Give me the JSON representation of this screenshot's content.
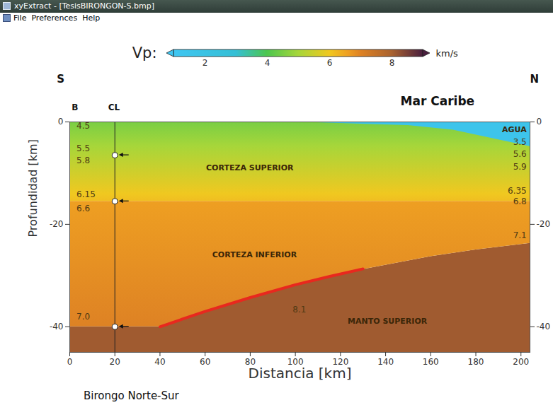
{
  "window": {
    "title": "xyExtract - [TesisBIRONGON-S.bmp]",
    "menu": [
      "File",
      "Preferences",
      "Help"
    ]
  },
  "chart_data": {
    "type": "velocity_section",
    "caption": "Birongo Norte-Sur",
    "x_label": "Distancia [km]",
    "y_label": "Profundidad [km]",
    "xlim": [
      0,
      204
    ],
    "xticks": [
      0,
      20,
      40,
      60,
      80,
      100,
      120,
      140,
      160,
      180,
      200
    ],
    "ylim": [
      -45,
      0
    ],
    "yticks": [
      -40,
      -20,
      0
    ],
    "colorbar": {
      "label": "Vp:",
      "unit": "km/s",
      "range": [
        1,
        9
      ],
      "ticks": [
        2,
        4,
        6,
        8
      ],
      "stops": [
        1,
        3,
        4,
        5,
        6,
        6.6,
        7,
        8,
        9
      ],
      "colors": [
        "#3fc6f2",
        "#35bfd5",
        "#4cc64e",
        "#a6d63a",
        "#f0c820",
        "#ee9f22",
        "#de8224",
        "#a9622f",
        "#4a1f3e"
      ]
    },
    "layers": [
      {
        "vp_top": 8.1,
        "vp_bottom": 8.1,
        "x": [
          0,
          40,
          60,
          80,
          100,
          130,
          160,
          180,
          204
        ],
        "top": [
          -40,
          -40,
          -37.2,
          -34.5,
          -32,
          -28.8,
          -26.3,
          -25,
          -23.7
        ],
        "bottom": [
          -45,
          -45,
          -45,
          -45,
          -45,
          -45,
          -45,
          -45,
          -45
        ]
      },
      {
        "vp_top": 6.6,
        "vp_bottom": 7.0,
        "x": [
          0,
          40,
          60,
          80,
          100,
          130,
          160,
          180,
          204
        ],
        "top": [
          -15.5,
          -15.5,
          -15.5,
          -15.5,
          -15.5,
          -15.5,
          -15.5,
          -15.5,
          -15.5
        ],
        "bottom": [
          -40,
          -40,
          -37.2,
          -34.5,
          -32,
          -28.8,
          -26.3,
          -25,
          -23.7
        ]
      },
      {
        "vp_top": 4.5,
        "vp_bottom": 6.15,
        "x": [
          0,
          204
        ],
        "top": [
          0,
          0
        ],
        "bottom": [
          -15.5,
          -15.5
        ]
      },
      {
        "vp_top": 1.5,
        "vp_bottom": 1.5,
        "x": [
          100,
          150,
          170,
          204
        ],
        "top": [
          0,
          0,
          0,
          0
        ],
        "bottom": [
          0,
          -0.7,
          -1.6,
          -4.8
        ]
      }
    ],
    "reflector": {
      "x": [
        40,
        60,
        80,
        100,
        115,
        130
      ],
      "y": [
        -40,
        -37,
        -34.3,
        -31.8,
        -30.2,
        -28.7
      ],
      "color": "#e8281e"
    },
    "profile_line": {
      "x": 20,
      "marks": [
        -6.5,
        -15.5,
        -40
      ],
      "labels": [
        {
          "text": "B",
          "x": 2.3,
          "y": 2.8
        },
        {
          "text": "CL",
          "x": 19.6,
          "y": 2.8
        }
      ]
    },
    "corner_labels": [
      {
        "text": "S",
        "x": -4,
        "y": 8.3
      },
      {
        "text": "N",
        "x": 206,
        "y": 8.3
      }
    ],
    "sea_label": {
      "text": "Mar Caribe",
      "x": 163,
      "y": 4
    },
    "velocity_labels": [
      {
        "text": "4.5",
        "x": 3,
        "y": -0.8
      },
      {
        "text": "5.5",
        "x": 3,
        "y": -5.2
      },
      {
        "text": "5.8",
        "x": 3,
        "y": -7.6
      },
      {
        "text": "6.15",
        "x": 3,
        "y": -14.2
      },
      {
        "text": "6.6",
        "x": 3,
        "y": -17.0
      },
      {
        "text": "7.0",
        "x": 3,
        "y": -38.1
      },
      {
        "text": "3.5",
        "x": 202.5,
        "y": -3.9
      },
      {
        "text": "5.6",
        "x": 202.5,
        "y": -6.3
      },
      {
        "text": "5.9",
        "x": 202.5,
        "y": -8.8
      },
      {
        "text": "6.35",
        "x": 202.5,
        "y": -13.5
      },
      {
        "text": "6.8",
        "x": 202.5,
        "y": -15.6
      },
      {
        "text": "7.1",
        "x": 202.5,
        "y": -22.2
      },
      {
        "text": "8.1",
        "x": 101.8,
        "y": -36.7
      }
    ],
    "region_labels": [
      {
        "text": "AGUA",
        "x": 202.5,
        "y": -1.5
      },
      {
        "text": "CORTEZA SUPERIOR",
        "x": 79.8,
        "y": -9.0
      },
      {
        "text": "CORTEZA INFERIOR",
        "x": 81.9,
        "y": -25.9
      },
      {
        "text": "MANTO SUPERIOR",
        "x": 140.8,
        "y": -38.9
      }
    ]
  }
}
